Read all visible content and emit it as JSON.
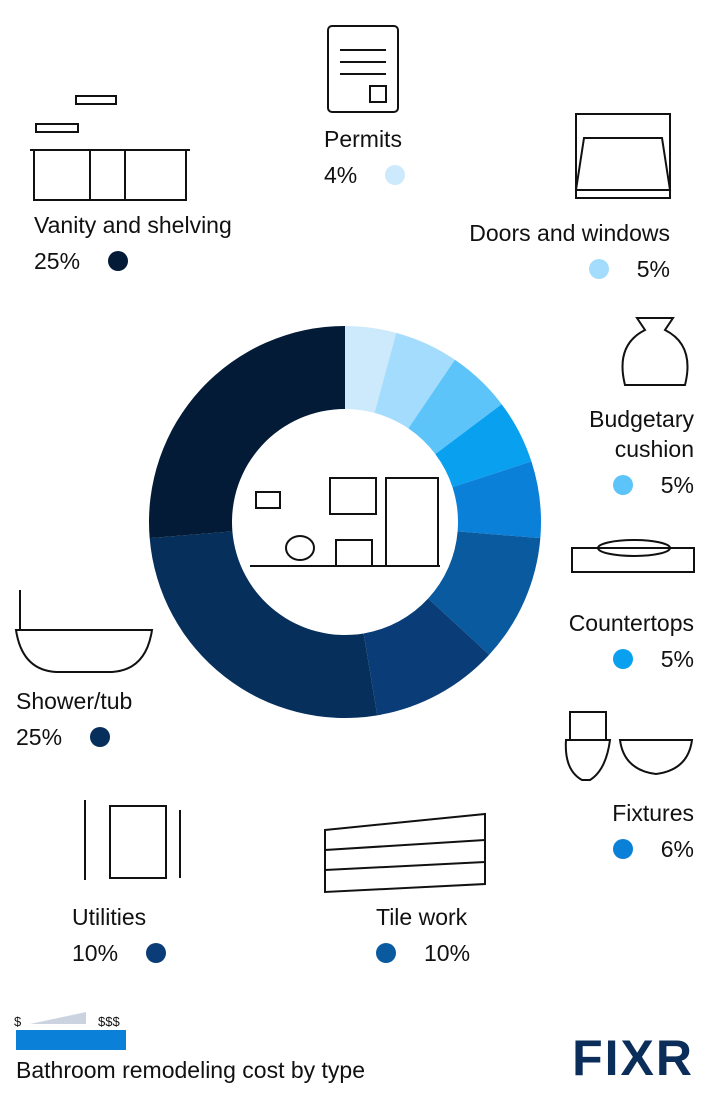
{
  "chart_data": {
    "type": "pie",
    "categories": [
      "Permits",
      "Doors and windows",
      "Budgetary cushion",
      "Countertops",
      "Fixtures",
      "Tile work",
      "Utilities",
      "Shower/tub",
      "Vanity and shelving"
    ],
    "values": [
      4,
      5,
      5,
      5,
      6,
      10,
      10,
      25,
      25
    ],
    "value_labels": [
      "4%",
      "5%",
      "5%",
      "5%",
      "6%",
      "10%",
      "10%",
      "25%",
      "25%"
    ],
    "colors": [
      "#cdeafc",
      "#a4dcfd",
      "#5cc4f8",
      "#0aa0f0",
      "#0a80d8",
      "#0a5aa0",
      "#0a3d78",
      "#062f5c",
      "#031b36"
    ],
    "donut": true
  },
  "scale": {
    "low": "$",
    "high": "$$$"
  },
  "caption": "Bathroom remodeling cost by type",
  "logo": "FIXR"
}
